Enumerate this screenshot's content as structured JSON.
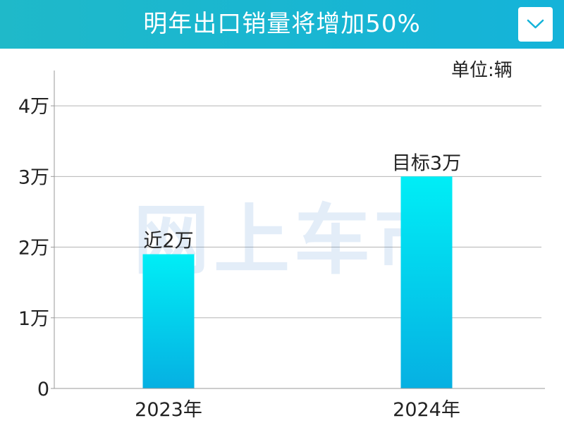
{
  "header": {
    "title": "明年出口销量将增加50%",
    "dropdown_icon": "chevron-down-icon"
  },
  "colors": {
    "header_bg": "#1fb9c9",
    "bar_top": "#00eef6",
    "bar_bottom": "#06b0e2",
    "watermark": "#3b7fd0"
  },
  "watermark": {
    "text": "网上车市"
  },
  "chart_data": {
    "type": "bar",
    "title": "明年出口销量将增加50%",
    "unit_label": "单位:辆",
    "categories": [
      "2023年",
      "2024年"
    ],
    "values": [
      19000,
      30000
    ],
    "data_labels": [
      "近2万",
      "目标3万"
    ],
    "yticks": [
      {
        "value": 0,
        "label": "0"
      },
      {
        "value": 10000,
        "label": "1万"
      },
      {
        "value": 20000,
        "label": "2万"
      },
      {
        "value": 30000,
        "label": "3万"
      },
      {
        "value": 40000,
        "label": "4万"
      }
    ],
    "ylim": [
      0,
      45000
    ],
    "grid": true,
    "legend": "none"
  }
}
